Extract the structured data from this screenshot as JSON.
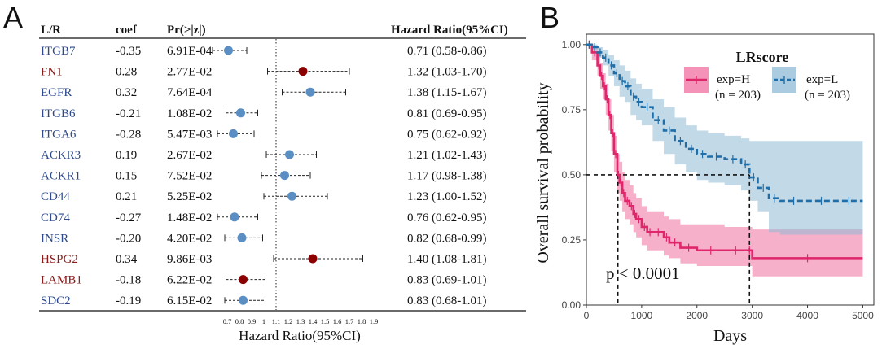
{
  "panel_labels": [
    "A",
    "B"
  ],
  "chart_data": [
    {
      "type": "table",
      "kind": "forest-plot",
      "columns": [
        "L/R",
        "coef",
        "Pr(>|z|)",
        "Hazard Ratio(95%CI)"
      ],
      "xlabel": "Hazard Ratio(95%CI)",
      "x_ticks": [
        "0.7",
        "0.8",
        "0.9",
        "1",
        "1.1",
        "1.2",
        "1.3",
        "1.4",
        "1.5",
        "1.6",
        "1.7",
        "1.8",
        "1.9"
      ],
      "reference_line": 1.1,
      "colors": {
        "ligand": "#8b1a1a",
        "receptor": "#2e4a8c",
        "point_receptor": "#5b8fc4",
        "point_ligand": "#8b0000"
      },
      "rows": [
        {
          "gene": "ITGB7",
          "coef": "-0.35",
          "p": "6.91E-04",
          "hr_text": "0.71 (0.58-0.86)",
          "role": "receptor",
          "hr": 0.71,
          "lo": 0.58,
          "hi": 0.86
        },
        {
          "gene": "FN1",
          "coef": "0.28",
          "p": "2.77E-02",
          "hr_text": "1.32 (1.03-1.70)",
          "role": "ligand",
          "hr": 1.32,
          "lo": 1.03,
          "hi": 1.7
        },
        {
          "gene": "EGFR",
          "coef": "0.32",
          "p": "7.64E-04",
          "hr_text": "1.38 (1.15-1.67)",
          "role": "receptor",
          "hr": 1.38,
          "lo": 1.15,
          "hi": 1.67
        },
        {
          "gene": "ITGB6",
          "coef": "-0.21",
          "p": "1.08E-02",
          "hr_text": "0.81 (0.69-0.95)",
          "role": "receptor",
          "hr": 0.81,
          "lo": 0.69,
          "hi": 0.95
        },
        {
          "gene": "ITGA6",
          "coef": "-0.28",
          "p": "5.47E-03",
          "hr_text": "0.75 (0.62-0.92)",
          "role": "receptor",
          "hr": 0.75,
          "lo": 0.62,
          "hi": 0.92
        },
        {
          "gene": "ACKR3",
          "coef": "0.19",
          "p": "2.67E-02",
          "hr_text": "1.21 (1.02-1.43)",
          "role": "receptor",
          "hr": 1.21,
          "lo": 1.02,
          "hi": 1.43
        },
        {
          "gene": "ACKR1",
          "coef": "0.15",
          "p": "7.52E-02",
          "hr_text": "1.17 (0.98-1.38)",
          "role": "receptor",
          "hr": 1.17,
          "lo": 0.98,
          "hi": 1.38
        },
        {
          "gene": "CD44",
          "coef": "0.21",
          "p": "5.25E-02",
          "hr_text": "1.23 (1.00-1.52)",
          "role": "receptor",
          "hr": 1.23,
          "lo": 1.0,
          "hi": 1.52
        },
        {
          "gene": "CD74",
          "coef": "-0.27",
          "p": "1.48E-02",
          "hr_text": "0.76 (0.62-0.95)",
          "role": "receptor",
          "hr": 0.76,
          "lo": 0.62,
          "hi": 0.95
        },
        {
          "gene": "INSR",
          "coef": "-0.20",
          "p": "4.20E-02",
          "hr_text": "0.82 (0.68-0.99)",
          "role": "receptor",
          "hr": 0.82,
          "lo": 0.68,
          "hi": 0.99
        },
        {
          "gene": "HSPG2",
          "coef": "0.34",
          "p": "9.86E-03",
          "hr_text": "1.40 (1.08-1.81)",
          "role": "ligand",
          "hr": 1.4,
          "lo": 1.08,
          "hi": 1.81
        },
        {
          "gene": "LAMB1",
          "coef": "-0.18",
          "p": "6.22E-02",
          "hr_text": "0.83 (0.69-1.01)",
          "role": "ligand",
          "hr": 0.83,
          "lo": 0.69,
          "hi": 1.01
        },
        {
          "gene": "SDC2",
          "coef": "-0.19",
          "p": "6.15E-02",
          "hr_text": "0.83 (0.68-1.01)",
          "role": "receptor",
          "hr": 0.83,
          "lo": 0.68,
          "hi": 1.01
        }
      ]
    },
    {
      "type": "line",
      "kind": "kaplan-meier",
      "xlabel": "Days",
      "ylabel": "Overall survival probability",
      "xlim": [
        0,
        5200
      ],
      "ylim": [
        0,
        1.04
      ],
      "x_ticks": [
        0,
        1000,
        2000,
        3000,
        4000,
        5000
      ],
      "y_ticks": [
        "0.00",
        "0.25",
        "0.50",
        "0.75",
        "1.00"
      ],
      "legend": {
        "title": "LRscore",
        "placement": "top-right"
      },
      "annotation": "p < 0.0001",
      "median_lines": {
        "y": 0.5,
        "x": [
          570,
          2950
        ]
      },
      "series": [
        {
          "name": "exp=H",
          "label_n": "(n = 203)",
          "color": "#e0266a",
          "fill": "#f06f9f",
          "line_style": "solid",
          "x": [
            0,
            100,
            200,
            250,
            300,
            350,
            400,
            450,
            500,
            560,
            600,
            650,
            700,
            780,
            850,
            900,
            1000,
            1100,
            1200,
            1400,
            1500,
            1700,
            2000,
            2500,
            2900,
            3000,
            5000
          ],
          "y": [
            1.0,
            0.97,
            0.92,
            0.88,
            0.84,
            0.79,
            0.73,
            0.66,
            0.58,
            0.5,
            0.47,
            0.43,
            0.4,
            0.38,
            0.35,
            0.33,
            0.3,
            0.28,
            0.28,
            0.26,
            0.24,
            0.22,
            0.21,
            0.21,
            0.21,
            0.18,
            0.18
          ],
          "ci_upper": [
            1.0,
            0.99,
            0.96,
            0.93,
            0.89,
            0.85,
            0.79,
            0.73,
            0.65,
            0.58,
            0.55,
            0.51,
            0.48,
            0.46,
            0.43,
            0.41,
            0.38,
            0.36,
            0.36,
            0.34,
            0.33,
            0.31,
            0.31,
            0.3,
            0.3,
            0.29,
            0.29
          ],
          "ci_lower": [
            1.0,
            0.94,
            0.88,
            0.83,
            0.79,
            0.73,
            0.67,
            0.59,
            0.51,
            0.43,
            0.4,
            0.36,
            0.33,
            0.31,
            0.28,
            0.26,
            0.23,
            0.21,
            0.21,
            0.19,
            0.18,
            0.16,
            0.15,
            0.15,
            0.15,
            0.11,
            0.11
          ]
        },
        {
          "name": "exp=L",
          "label_n": "(n = 203)",
          "color": "#1f6ea8",
          "fill": "#8fbad6",
          "line_style": "dashed",
          "x": [
            0,
            100,
            200,
            300,
            400,
            500,
            600,
            700,
            800,
            900,
            1000,
            1200,
            1400,
            1600,
            1800,
            2000,
            2200,
            2500,
            2800,
            2950,
            3100,
            3300,
            3500,
            4000,
            4500,
            5000
          ],
          "y": [
            1.0,
            0.99,
            0.97,
            0.95,
            0.92,
            0.89,
            0.86,
            0.84,
            0.8,
            0.78,
            0.76,
            0.71,
            0.67,
            0.63,
            0.6,
            0.58,
            0.57,
            0.56,
            0.54,
            0.49,
            0.45,
            0.41,
            0.4,
            0.4,
            0.4,
            0.4
          ],
          "ci_upper": [
            1.0,
            1.0,
            0.99,
            0.98,
            0.96,
            0.94,
            0.92,
            0.9,
            0.87,
            0.85,
            0.83,
            0.79,
            0.76,
            0.72,
            0.69,
            0.67,
            0.66,
            0.65,
            0.64,
            0.63,
            0.63,
            0.63,
            0.63,
            0.63,
            0.63,
            0.63
          ],
          "ci_lower": [
            1.0,
            0.98,
            0.95,
            0.92,
            0.88,
            0.84,
            0.8,
            0.78,
            0.73,
            0.71,
            0.69,
            0.63,
            0.58,
            0.54,
            0.51,
            0.48,
            0.47,
            0.46,
            0.44,
            0.4,
            0.36,
            0.28,
            0.27,
            0.27,
            0.27,
            0.27
          ]
        }
      ]
    }
  ]
}
